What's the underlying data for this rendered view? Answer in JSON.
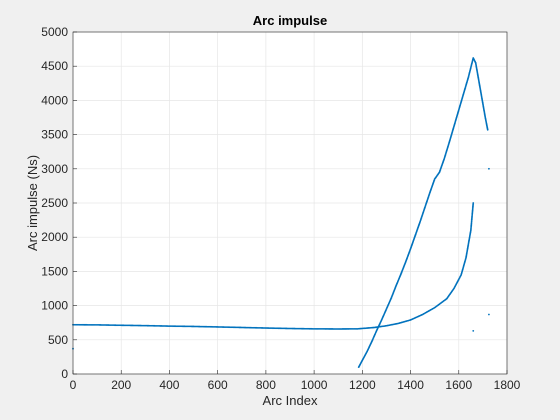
{
  "chart_data": {
    "type": "scatter",
    "title": "Arc impulse",
    "xlabel": "Arc Index",
    "ylabel": "Arc impulse (Ns)",
    "xlim": [
      0,
      1800
    ],
    "ylim": [
      0,
      5000
    ],
    "xticks": [
      0,
      200,
      400,
      600,
      800,
      1000,
      1200,
      1400,
      1600,
      1800
    ],
    "yticks": [
      0,
      500,
      1000,
      1500,
      2000,
      2500,
      3000,
      3500,
      4000,
      4500,
      5000
    ],
    "grid": true,
    "marker_color": "#0072bd",
    "series": [
      {
        "name": "",
        "points": [
          [
            0,
            720
          ],
          [
            100,
            718
          ],
          [
            200,
            712
          ],
          [
            300,
            707
          ],
          [
            400,
            700
          ],
          [
            500,
            695
          ],
          [
            600,
            688
          ],
          [
            700,
            680
          ],
          [
            800,
            672
          ],
          [
            900,
            665
          ],
          [
            1000,
            660
          ],
          [
            1100,
            658
          ],
          [
            1180,
            660
          ],
          [
            1250,
            680
          ],
          [
            1300,
            705
          ],
          [
            1350,
            740
          ],
          [
            1400,
            790
          ],
          [
            1450,
            870
          ],
          [
            1500,
            970
          ],
          [
            1550,
            1100
          ],
          [
            1580,
            1250
          ],
          [
            1610,
            1450
          ],
          [
            1630,
            1700
          ],
          [
            1650,
            2100
          ],
          [
            1660,
            2500
          ]
        ]
      },
      {
        "name": "",
        "points": [
          [
            1185,
            100
          ],
          [
            1200,
            200
          ],
          [
            1220,
            330
          ],
          [
            1240,
            480
          ],
          [
            1260,
            640
          ],
          [
            1280,
            790
          ],
          [
            1300,
            950
          ],
          [
            1320,
            1110
          ],
          [
            1340,
            1290
          ],
          [
            1360,
            1460
          ],
          [
            1380,
            1640
          ],
          [
            1400,
            1830
          ],
          [
            1420,
            2030
          ],
          [
            1440,
            2230
          ],
          [
            1460,
            2440
          ],
          [
            1480,
            2650
          ],
          [
            1500,
            2850
          ],
          [
            1520,
            2950
          ],
          [
            1540,
            3150
          ],
          [
            1560,
            3380
          ],
          [
            1580,
            3620
          ],
          [
            1600,
            3860
          ],
          [
            1620,
            4100
          ],
          [
            1640,
            4340
          ],
          [
            1660,
            4620
          ],
          [
            1670,
            4550
          ],
          [
            1680,
            4350
          ],
          [
            1690,
            4150
          ],
          [
            1700,
            3950
          ],
          [
            1710,
            3750
          ],
          [
            1720,
            3570
          ]
        ]
      },
      {
        "name": "",
        "points": [
          [
            0,
            370
          ],
          [
            1660,
            630
          ],
          [
            1725,
            3000
          ],
          [
            1725,
            870
          ]
        ]
      }
    ]
  }
}
